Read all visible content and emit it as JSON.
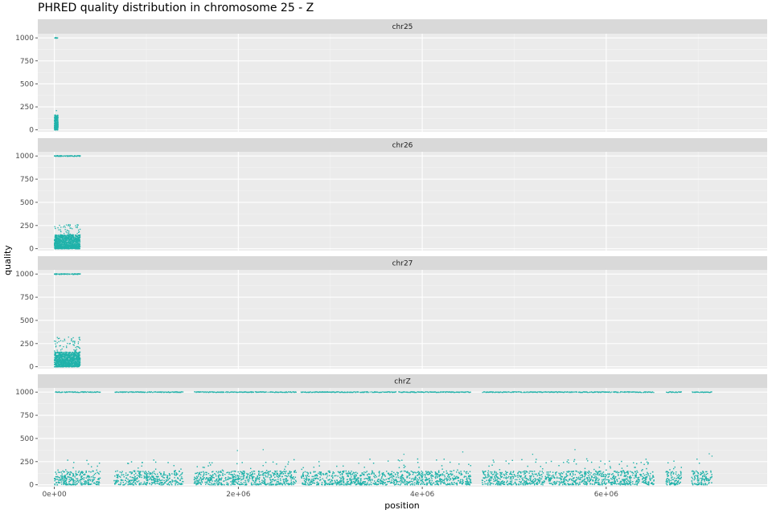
{
  "chart_data": {
    "type": "scatter",
    "title": "PHRED quality distribution in chromosome 25 - Z",
    "xlabel": "position",
    "ylabel": "quality",
    "xlim": [
      -180000,
      7750000
    ],
    "ylim": [
      -20,
      1045
    ],
    "x_ticks": [
      0,
      2000000,
      4000000,
      6000000
    ],
    "x_tick_labels": [
      "0e+00",
      "2e+06",
      "4e+06",
      "6e+06"
    ],
    "y_ticks": [
      0,
      250,
      500,
      750,
      1000
    ],
    "y_tick_labels": [
      "0",
      "250",
      "500",
      "750",
      "1000"
    ],
    "point_color": "#20b2aa",
    "panel_bg": "#ebebeb",
    "strip_bg": "#d9d9d9",
    "grid": true,
    "facets": [
      {
        "name": "chr25",
        "max_quality_points": {
          "x": [
            5000,
            10000,
            15000,
            20000,
            25000,
            30000,
            35000
          ],
          "y": [
            1000,
            1000,
            1000,
            1000,
            1000,
            1000,
            1000
          ]
        },
        "low_quality_range": {
          "x_start": 0,
          "x_end": 40000,
          "y_typical_max": 150,
          "y_peak": 210
        }
      },
      {
        "name": "chr26",
        "max_quality_points": {
          "x": [
            0,
            40000,
            80000,
            120000,
            160000,
            200000,
            240000,
            280000
          ],
          "y": [
            1000,
            1000,
            1000,
            1000,
            1000,
            1000,
            1000,
            1000
          ]
        },
        "low_quality_range": {
          "x_start": 0,
          "x_end": 280000,
          "y_typical_max": 150,
          "y_peak": 260
        }
      },
      {
        "name": "chr27",
        "max_quality_points": {
          "x": [
            0,
            40000,
            80000,
            120000,
            160000,
            200000,
            240000,
            280000
          ],
          "y": [
            1000,
            1000,
            1000,
            1000,
            1000,
            1000,
            1000,
            1000
          ]
        },
        "low_quality_range": {
          "x_start": 0,
          "x_end": 280000,
          "y_typical_max": 160,
          "y_peak": 320
        }
      },
      {
        "name": "chrZ",
        "max_quality_points": {
          "x_start": 0,
          "x_end": 7150000,
          "y": 1000
        },
        "low_quality_range": {
          "x_start": 0,
          "x_end": 7150000,
          "y_typical_max": 150,
          "y_peak": 380
        },
        "gaps": [
          [
            500000,
            650000
          ],
          [
            1400000,
            1520000
          ],
          [
            2630000,
            2680000
          ],
          [
            4530000,
            4650000
          ],
          [
            6520000,
            6650000
          ],
          [
            6820000,
            6930000
          ]
        ],
        "high_outliers": [
          {
            "x": 1990000,
            "y": 370
          },
          {
            "x": 2270000,
            "y": 380
          },
          {
            "x": 3800000,
            "y": 330
          },
          {
            "x": 4440000,
            "y": 355
          },
          {
            "x": 5200000,
            "y": 330
          },
          {
            "x": 5660000,
            "y": 380
          },
          {
            "x": 7120000,
            "y": 335
          },
          {
            "x": 7150000,
            "y": 310
          }
        ]
      }
    ]
  }
}
